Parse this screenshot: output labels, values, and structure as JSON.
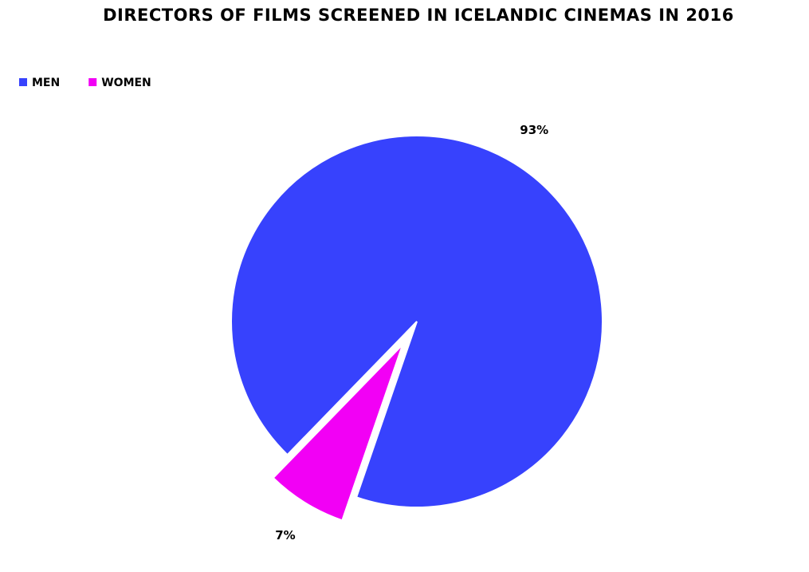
{
  "chart_data": {
    "type": "pie",
    "title": "DIRECTORS OF FILMS SCREENED IN ICELANDIC CINEMAS IN 2016",
    "categories": [
      "MEN",
      "WOMEN"
    ],
    "values": [
      93,
      7
    ],
    "value_labels": [
      "93%",
      "7%"
    ],
    "colors": [
      "#3742fd",
      "#f200f5"
    ],
    "legend": "top-left"
  }
}
